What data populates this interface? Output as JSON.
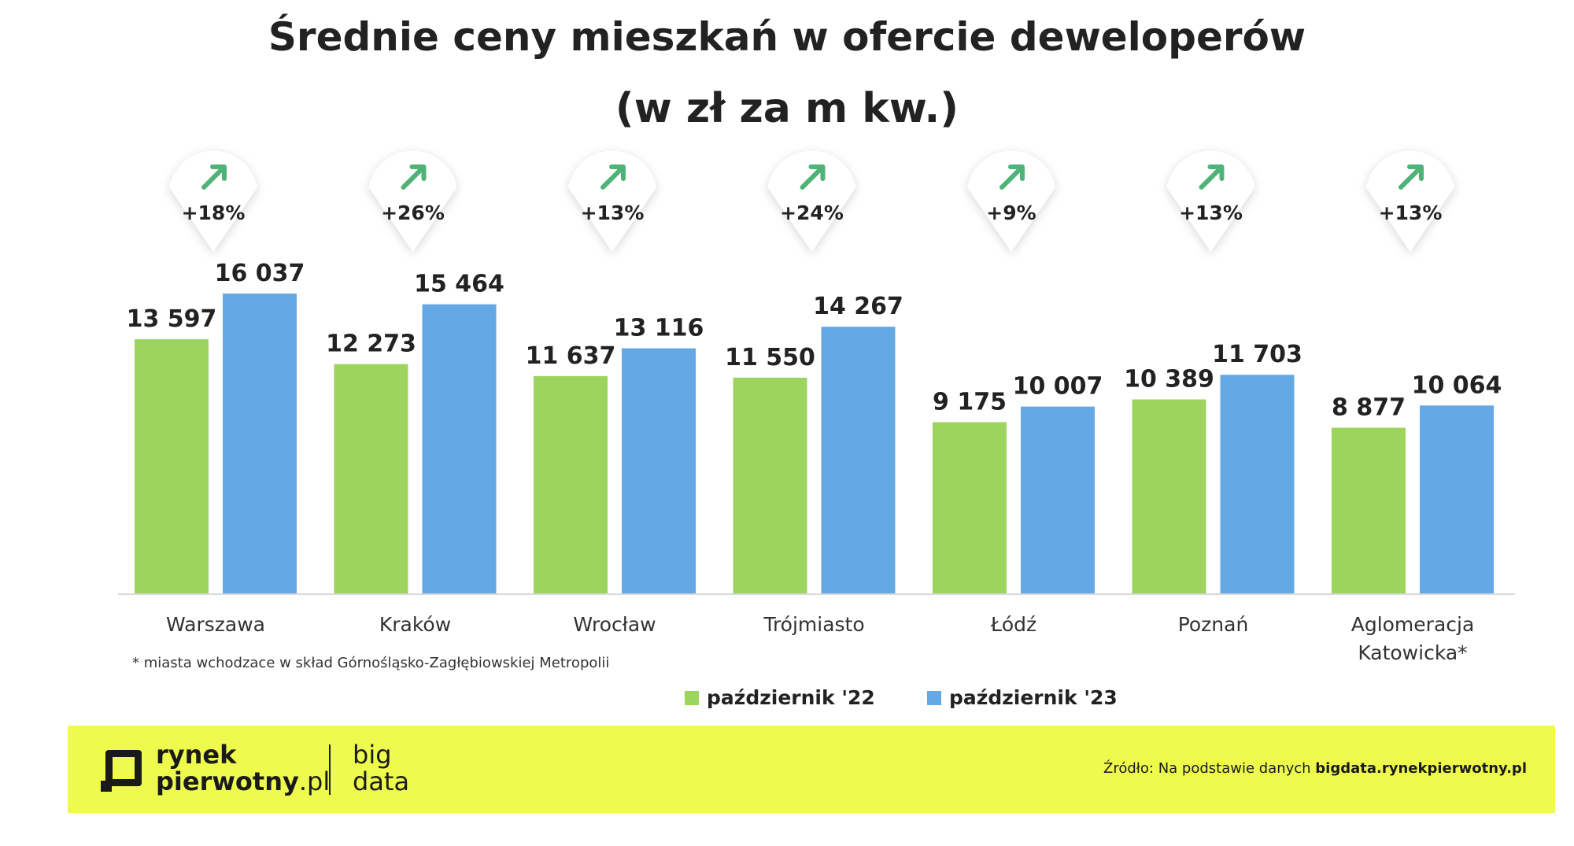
{
  "chart_data": {
    "type": "bar",
    "title": "Średnie ceny mieszkań w ofercie deweloperów",
    "subtitle": "(w zł za m kw.)",
    "categories": [
      [
        "Warszawa"
      ],
      [
        "Kraków"
      ],
      [
        "Wrocław"
      ],
      [
        "Trójmiasto"
      ],
      [
        "Łódź"
      ],
      [
        "Poznań"
      ],
      [
        "Aglomeracja",
        "Katowicka*"
      ]
    ],
    "series": [
      {
        "name": "październik '22",
        "color": "#9cd45e",
        "values": [
          13597,
          12273,
          11637,
          11550,
          9175,
          10389,
          8877
        ],
        "labels": [
          "13 597",
          "12 273",
          "11 637",
          "11 550",
          "9 175",
          "10 389",
          "8 877"
        ]
      },
      {
        "name": "październik '23",
        "color": "#64a8e6",
        "values": [
          16037,
          15464,
          13116,
          14267,
          10007,
          11703,
          10064
        ],
        "labels": [
          "16 037",
          "15 464",
          "13 116",
          "14 267",
          "10 007",
          "11 703",
          "10 064"
        ]
      }
    ],
    "changes": [
      "+18%",
      "+26%",
      "+13%",
      "+24%",
      "+9%",
      "+13%",
      "+13%"
    ],
    "ylim": [
      0,
      16037
    ],
    "xlabel": "",
    "ylabel": "",
    "grid": false,
    "legend": "bottom-center"
  },
  "footnote": "* miasta wchodzace w skład Górnośląsko-Zagłębiowskiej Metropolii",
  "footer": {
    "brand_line1": "rynek",
    "brand_line2": "pierwotny",
    "brand_tld": ".pl",
    "bigdata_line1": "big",
    "bigdata_line2": "data",
    "source_prefix": "Źródło: Na podstawie danych ",
    "source_domain": "bigdata.rynekpierwotny.pl",
    "accent_color": "#eefb4c"
  }
}
